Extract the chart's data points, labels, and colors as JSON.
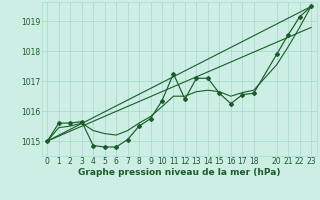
{
  "bg_color": "#cceee4",
  "line_color": "#1a5c2a",
  "grid_color": "#aaddcc",
  "xlabel": "Graphe pression niveau de la mer (hPa)",
  "ylim": [
    1014.5,
    1019.65
  ],
  "xlim": [
    -0.5,
    23.5
  ],
  "yticks": [
    1015,
    1016,
    1017,
    1018,
    1019
  ],
  "xticks": [
    0,
    1,
    2,
    3,
    4,
    5,
    6,
    7,
    8,
    9,
    10,
    11,
    12,
    13,
    14,
    15,
    16,
    17,
    18,
    20,
    21,
    22,
    23
  ],
  "series": {
    "main": {
      "x": [
        0,
        1,
        2,
        3,
        4,
        5,
        6,
        7,
        8,
        9,
        10,
        11,
        12,
        13,
        14,
        15,
        16,
        17,
        18,
        20,
        21,
        22,
        23
      ],
      "y": [
        1015.0,
        1015.6,
        1015.6,
        1015.65,
        1014.85,
        1014.8,
        1014.8,
        1015.05,
        1015.5,
        1015.75,
        1016.35,
        1017.25,
        1016.4,
        1017.1,
        1017.1,
        1016.6,
        1016.25,
        1016.55,
        1016.6,
        1017.9,
        1018.55,
        1019.15,
        1019.5
      ]
    },
    "smooth1": {
      "x": [
        0,
        1,
        2,
        3,
        4,
        5,
        6,
        7,
        8,
        9,
        10,
        11,
        12,
        13,
        14,
        15,
        16,
        17,
        18,
        20,
        21,
        22,
        23
      ],
      "y": [
        1015.0,
        1015.45,
        1015.5,
        1015.6,
        1015.35,
        1015.25,
        1015.2,
        1015.35,
        1015.6,
        1015.82,
        1016.15,
        1016.5,
        1016.5,
        1016.65,
        1016.7,
        1016.65,
        1016.5,
        1016.62,
        1016.7,
        1017.55,
        1018.15,
        1018.8,
        1019.5
      ]
    },
    "trend1": {
      "x": [
        0,
        23
      ],
      "y": [
        1015.0,
        1019.5
      ]
    },
    "trend2": {
      "x": [
        0,
        23
      ],
      "y": [
        1015.0,
        1018.8
      ]
    }
  },
  "xlabel_fontsize": 6.5,
  "tick_fontsize": 5.5
}
